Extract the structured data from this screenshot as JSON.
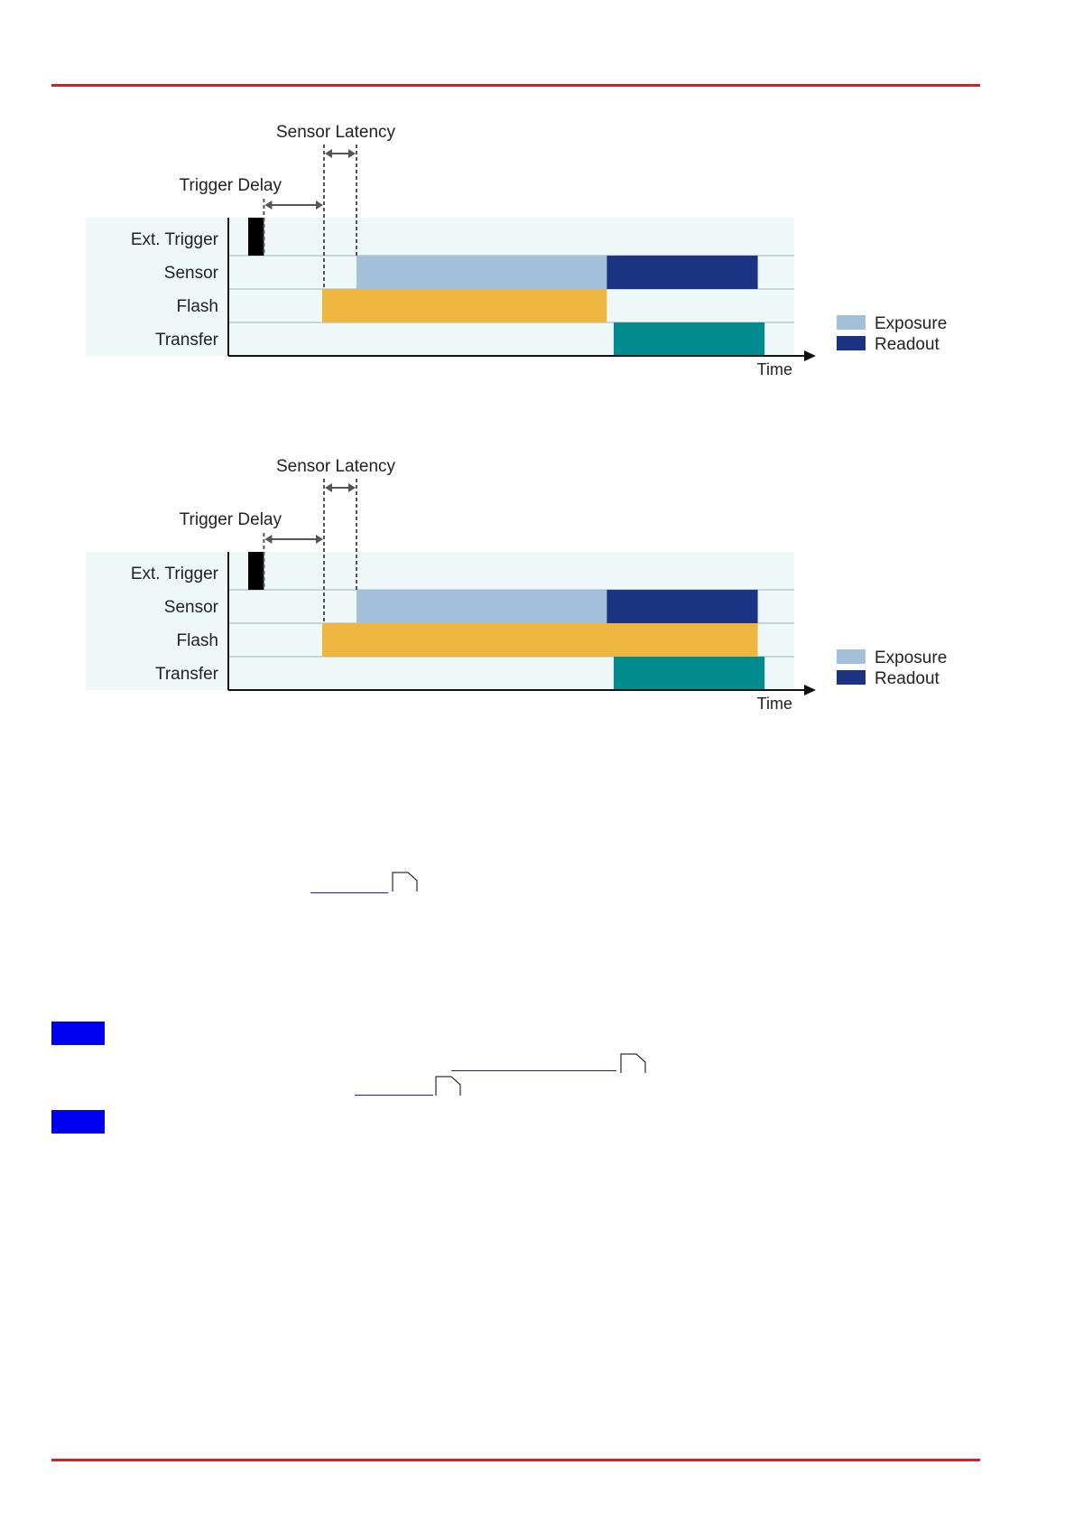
{
  "colors": {
    "rule": "#d42020",
    "panel": "#eef8f8",
    "grid": "#9fb5b8",
    "axis": "#111111",
    "exposure": "#a4bfd9",
    "readout": "#1c3384",
    "flash": "#efb63f",
    "transfer": "#008b8f",
    "trigger": "#000000",
    "dashed": "#555555",
    "link": "#1a1ad6",
    "blue_box": "#0000f0"
  },
  "rows": [
    "Ext. Trigger",
    "Sensor",
    "Flash",
    "Transfer"
  ],
  "axis_label": "Time",
  "annotations": {
    "sensor_latency": "Sensor Latency",
    "trigger_delay": "Trigger Delay"
  },
  "legend": [
    {
      "label": "Exposure",
      "color": "#a4bfd9"
    },
    {
      "label": "Readout",
      "color": "#1c3384"
    }
  ],
  "diagrams": [
    {
      "name": "flash-during-exposure",
      "trigger": [
        0.0,
        0.03
      ],
      "sensor_exposure": [
        0.3,
        1.03
      ],
      "sensor_readout": [
        1.03,
        1.47
      ],
      "flash": [
        0.2,
        1.03
      ],
      "transfer": [
        1.05,
        1.49
      ]
    },
    {
      "name": "flash-during-exposure-and-readout",
      "trigger": [
        0.0,
        0.03
      ],
      "sensor_exposure": [
        0.3,
        1.03
      ],
      "sensor_readout": [
        1.03,
        1.47
      ],
      "flash": [
        0.2,
        1.47
      ],
      "transfer": [
        1.05,
        1.49
      ]
    }
  ]
}
